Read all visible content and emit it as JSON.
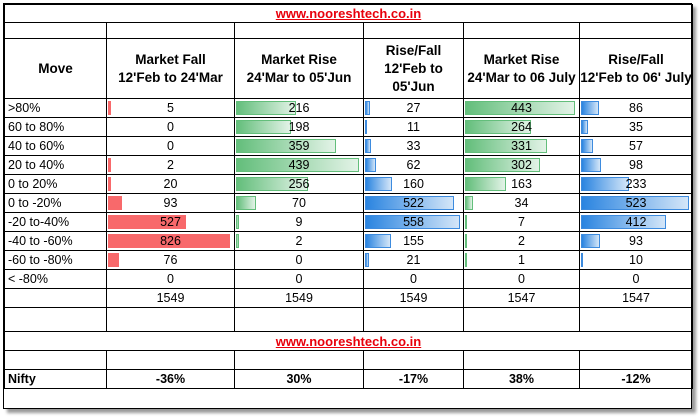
{
  "site_link": "www.nooreshtech.co.in",
  "headers": {
    "move": "Move",
    "col1": [
      "Market Fall",
      "12'Feb to 24'Mar"
    ],
    "col2": [
      "Market Rise",
      "24'Mar to 05'Jun"
    ],
    "col3": [
      "Rise/Fall",
      "12'Feb to",
      "05'Jun"
    ],
    "col4": [
      "Market Rise",
      "24'Mar to 06 July"
    ],
    "col5": [
      "Rise/Fall",
      "12'Feb to 06' July"
    ]
  },
  "bar_colors": {
    "col1": "#f8696b",
    "col2": "#63be7b",
    "col3": "#2a84e0",
    "col4": "#63be7b",
    "col5": "#2a84e0"
  },
  "rows": [
    {
      "move": ">80%",
      "values": [
        "5",
        "216",
        "27",
        "443",
        "86"
      ]
    },
    {
      "move": "60 to 80%",
      "values": [
        "0",
        "198",
        "11",
        "264",
        "35"
      ]
    },
    {
      "move": "40 to 60%",
      "values": [
        "0",
        "359",
        "33",
        "331",
        "57"
      ]
    },
    {
      "move": "20 to 40%",
      "values": [
        "2",
        "439",
        "62",
        "302",
        "98"
      ]
    },
    {
      "move": "0 to 20%",
      "values": [
        "20",
        "256",
        "160",
        "163",
        "233"
      ]
    },
    {
      "move": "0 to -20%",
      "values": [
        "93",
        "70",
        "522",
        "34",
        "523"
      ]
    },
    {
      "move": "-20 to-40%",
      "values": [
        "527",
        "9",
        "558",
        "7",
        "412"
      ]
    },
    {
      "move": "-40 to -60%",
      "values": [
        "826",
        "2",
        "155",
        "2",
        "93"
      ]
    },
    {
      "move": "-60 to -80%",
      "values": [
        "76",
        "0",
        "21",
        "1",
        "10"
      ]
    },
    {
      "move": "< -80%",
      "values": [
        "0",
        "0",
        "0",
        "0",
        "0"
      ]
    }
  ],
  "totals": [
    "1549",
    "1549",
    "1549",
    "1547",
    "1547"
  ],
  "nifty": {
    "label": "Nifty",
    "values": [
      "-36%",
      "30%",
      "-17%",
      "38%",
      "-12%"
    ]
  }
}
